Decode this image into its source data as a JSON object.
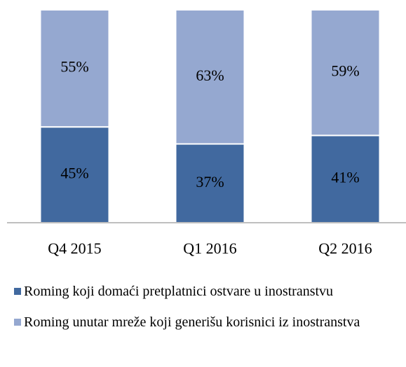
{
  "chart_data": {
    "type": "stacked_bar",
    "categories": [
      "Q4 2015",
      "Q1 2016",
      "Q2 2016"
    ],
    "series": [
      {
        "name": "Roming koji domaći pretplatnici ostvare u inostranstvu",
        "color": "#41699f",
        "values": [
          45,
          37,
          41
        ],
        "value_labels": [
          "45%",
          "37%",
          "41%"
        ]
      },
      {
        "name": "Roming unutar mreže koji generišu korisnici iz inostranstva",
        "color": "#95a8d0",
        "values": [
          55,
          63,
          59
        ],
        "value_labels": [
          "55%",
          "63%",
          "59%"
        ]
      }
    ],
    "ylim": [
      0,
      100
    ],
    "legend": "bottom"
  }
}
